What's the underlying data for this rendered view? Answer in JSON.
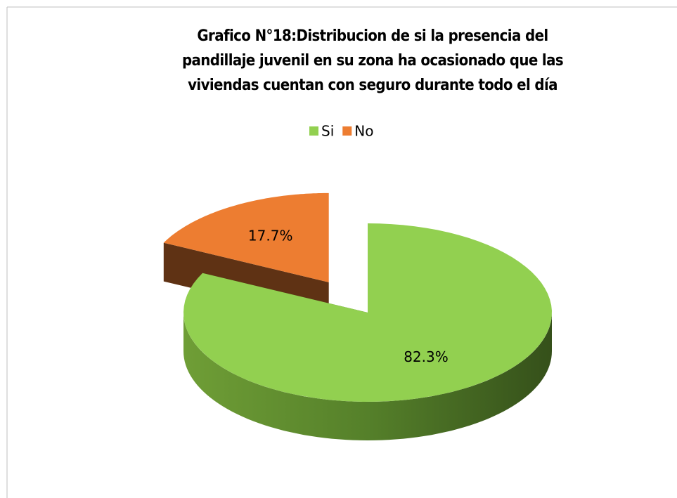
{
  "chart_data": {
    "type": "pie3d",
    "title": "Grafico N°18:Distribucion de si la presencia del pandillaje juvenil en su zona ha ocasionado que las viviendas cuentan con seguro durante todo el día",
    "categories": [
      "Si",
      "No"
    ],
    "values": [
      82.3,
      17.7
    ],
    "value_labels": [
      "82.3%",
      "17.7%"
    ],
    "colors": [
      "#92d050",
      "#ed7d31"
    ],
    "legend": "top"
  }
}
